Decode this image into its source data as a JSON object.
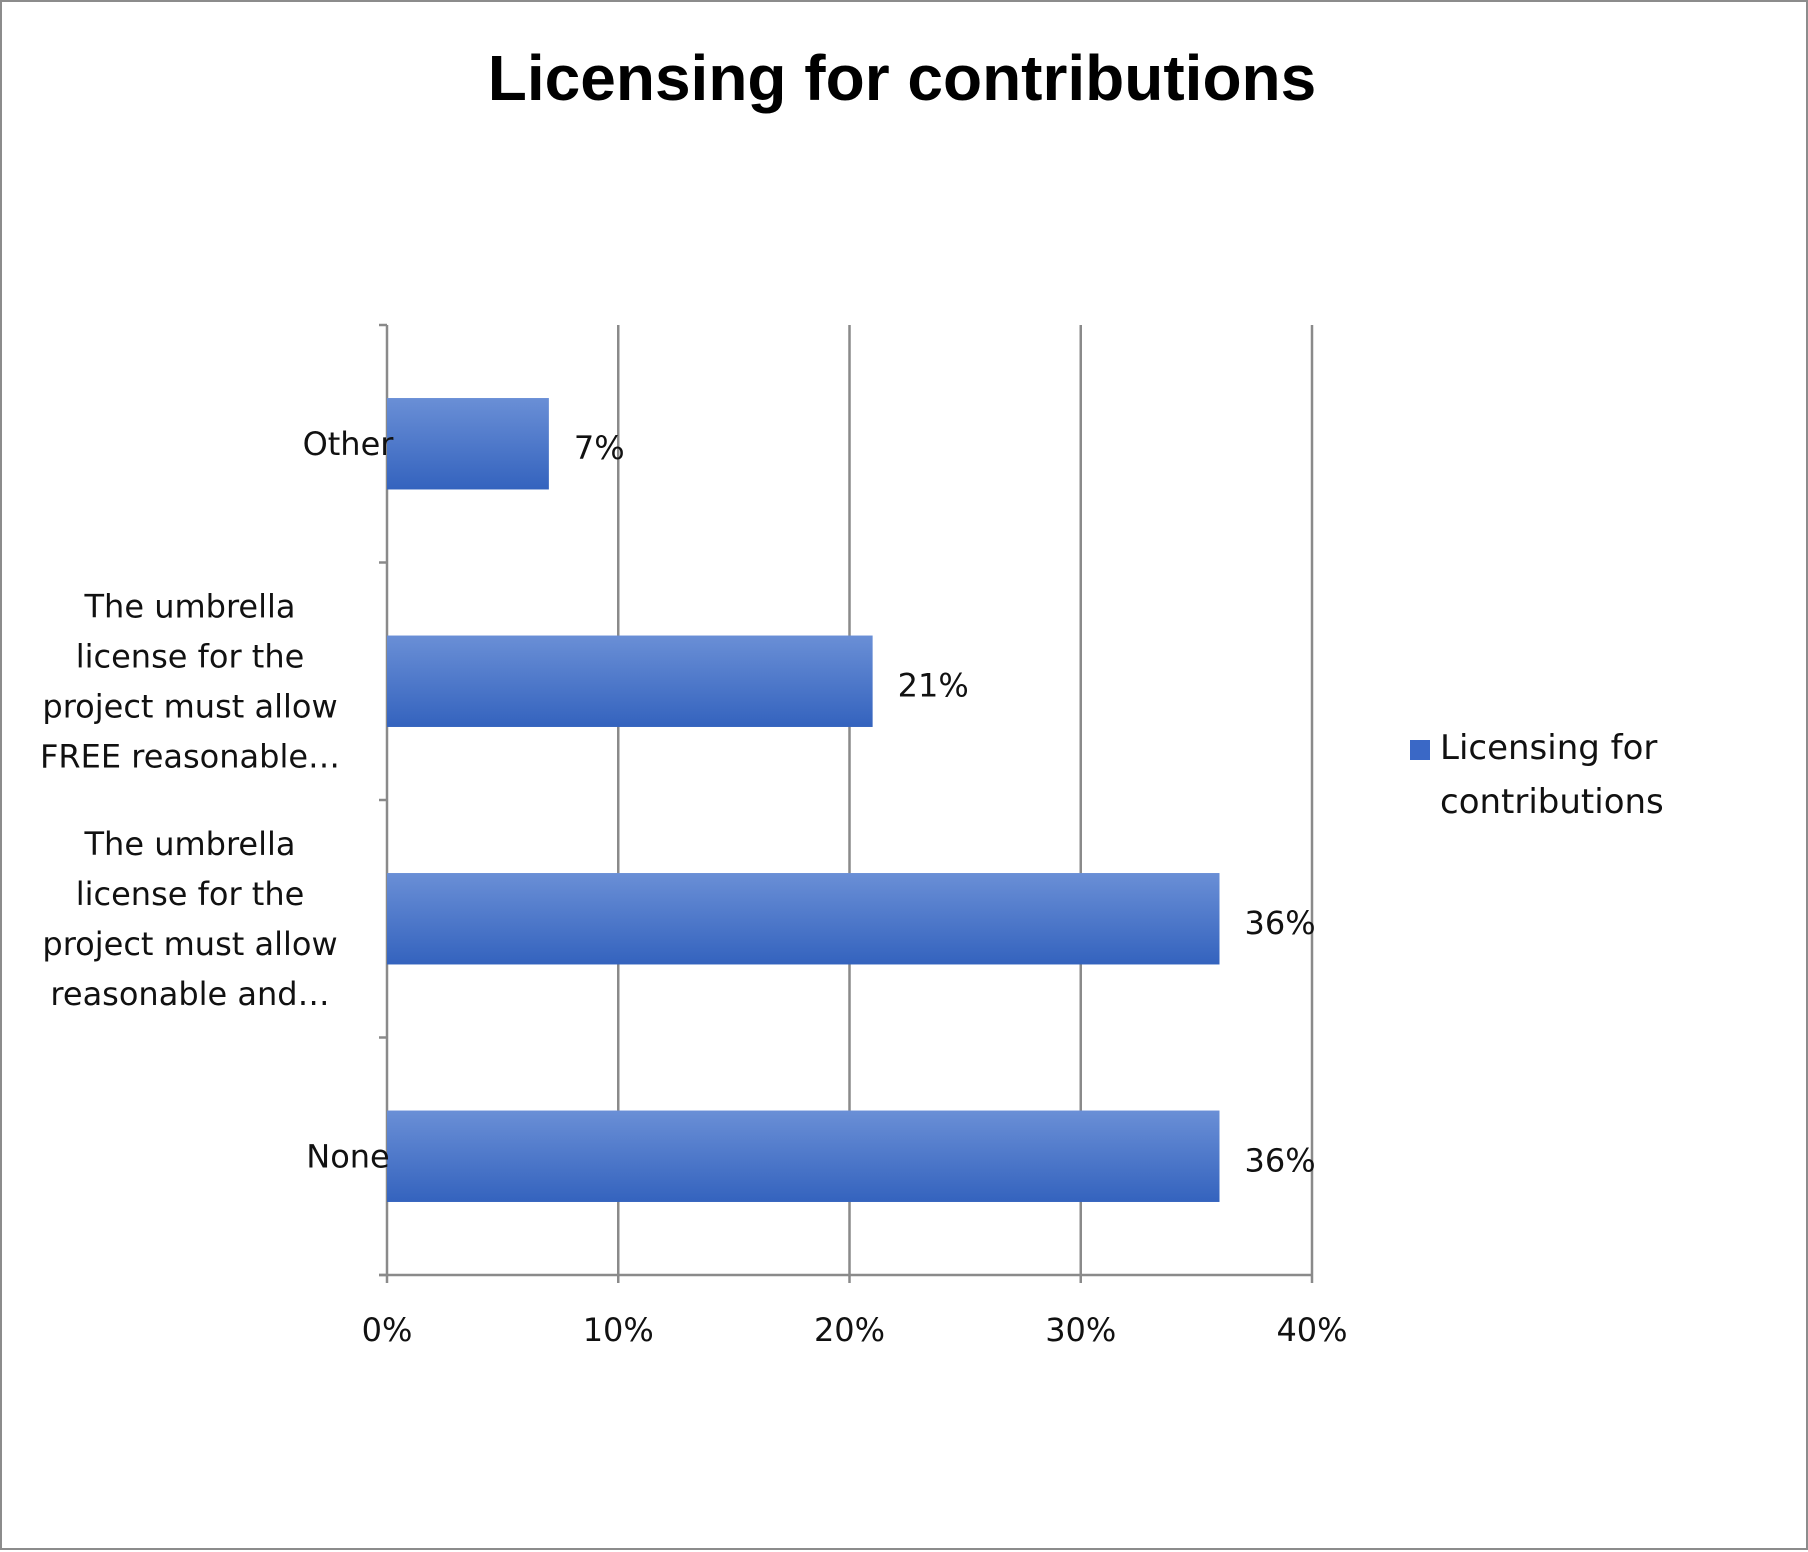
{
  "chart_data": {
    "type": "bar",
    "orientation": "horizontal",
    "title": "Licensing for contributions",
    "categories": [
      "None",
      "The umbrella license for the project must allow reasonable and…",
      "The umbrella license for the project must allow FREE reasonable…",
      "Other"
    ],
    "category_label_lines": [
      [
        "None"
      ],
      [
        "The umbrella",
        "license for the",
        "project must allow",
        "reasonable and…"
      ],
      [
        "The umbrella",
        "license for the",
        "project must allow",
        "FREE reasonable…"
      ],
      [
        "Other"
      ]
    ],
    "series": [
      {
        "name": "Licensing for contributions",
        "values": [
          36,
          36,
          21,
          7
        ],
        "data_labels": [
          "36%",
          "36%",
          "21%",
          "7%"
        ]
      }
    ],
    "xlim": [
      0,
      40
    ],
    "xticks": [
      0,
      10,
      20,
      30,
      40
    ],
    "xtick_labels": [
      "0%",
      "10%",
      "20%",
      "30%",
      "40%"
    ],
    "xlabel": "",
    "ylabel": "",
    "grid": true,
    "legend": {
      "position": "right",
      "lines": [
        "Licensing for",
        "contributions"
      ]
    },
    "colors": {
      "bar_top": "#6a8fd6",
      "bar_bottom": "#3463be",
      "legend_swatch": "#3a68c6"
    }
  }
}
